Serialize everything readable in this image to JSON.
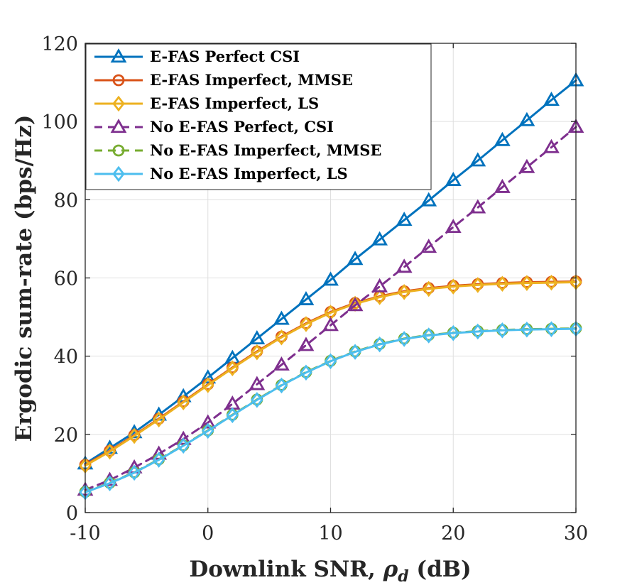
{
  "chart_data": {
    "type": "line",
    "title": "",
    "xlabel": "Downlink SNR, ",
    "xlabel_symbol": "ρ",
    "xlabel_subscript": "d",
    "xlabel_unit": " (dB)",
    "ylabel": "Ergodic sum-rate (bps/Hz)",
    "xlim": [
      -10,
      30
    ],
    "ylim": [
      0,
      120
    ],
    "xticks": [
      -10,
      0,
      10,
      20,
      30
    ],
    "xtick_labels": [
      "-10",
      "0",
      "10",
      "20",
      "30"
    ],
    "yticks": [
      0,
      20,
      40,
      60,
      80,
      100,
      120
    ],
    "ytick_labels": [
      "0",
      "20",
      "40",
      "60",
      "80",
      "100",
      "120"
    ],
    "grid": true,
    "legend_position": "top-left",
    "x": [
      -10,
      -8,
      -6,
      -4,
      -2,
      0,
      2,
      4,
      6,
      8,
      10,
      12,
      14,
      16,
      18,
      20,
      22,
      24,
      26,
      28,
      30
    ],
    "series": [
      {
        "name": "E-FAS Perfect CSI",
        "color": "#0072BD",
        "marker": "triangle",
        "linestyle": "solid",
        "values": [
          12.5,
          16.5,
          20.5,
          25,
          29.7,
          34.5,
          39.5,
          44.5,
          49.5,
          54.5,
          59.5,
          64.8,
          69.8,
          74.8,
          79.8,
          85,
          90,
          95.2,
          100.3,
          105.5,
          110.5
        ]
      },
      {
        "name": "E-FAS Imperfect, MMSE",
        "color": "#D95319",
        "marker": "circle",
        "linestyle": "solid",
        "values": [
          12.2,
          15.8,
          19.8,
          24,
          28.4,
          32.8,
          37.1,
          41.2,
          45,
          48.4,
          51.3,
          53.6,
          55.3,
          56.6,
          57.4,
          58,
          58.4,
          58.7,
          58.9,
          59,
          59.1
        ]
      },
      {
        "name": "E-FAS Imperfect, LS",
        "color": "#EDB120",
        "marker": "diamond",
        "linestyle": "solid",
        "values": [
          12,
          15.6,
          19.6,
          23.8,
          28.2,
          32.6,
          36.9,
          41,
          44.8,
          48.2,
          51.1,
          53.4,
          55.1,
          56.4,
          57.2,
          57.8,
          58.2,
          58.5,
          58.7,
          58.8,
          58.9
        ]
      },
      {
        "name": "No E-FAS Perfect, CSI",
        "color": "#7E2F8E",
        "marker": "triangle",
        "linestyle": "dashed",
        "values": [
          5.8,
          8.3,
          11.5,
          15,
          18.8,
          23,
          27.8,
          32.8,
          37.8,
          42.8,
          47.9,
          53,
          57.8,
          62.8,
          67.9,
          73,
          78,
          83.2,
          88.3,
          93.4,
          98.6
        ]
      },
      {
        "name": "No E-FAS Imperfect, MMSE",
        "color": "#77AC30",
        "marker": "circle",
        "linestyle": "dashed",
        "values": [
          5.3,
          7.6,
          10.3,
          13.6,
          17.2,
          21,
          25,
          28.9,
          32.6,
          35.9,
          38.8,
          41.2,
          43.1,
          44.5,
          45.4,
          46,
          46.4,
          46.7,
          46.9,
          47,
          47.1
        ]
      },
      {
        "name": "No E-FAS Imperfect, LS",
        "color": "#4DBEEE",
        "marker": "diamond",
        "linestyle": "solid",
        "values": [
          5.2,
          7.5,
          10.2,
          13.5,
          17.1,
          20.9,
          24.9,
          28.8,
          32.5,
          35.8,
          38.7,
          41.1,
          43,
          44.4,
          45.3,
          45.9,
          46.3,
          46.6,
          46.8,
          46.9,
          47
        ]
      }
    ]
  }
}
